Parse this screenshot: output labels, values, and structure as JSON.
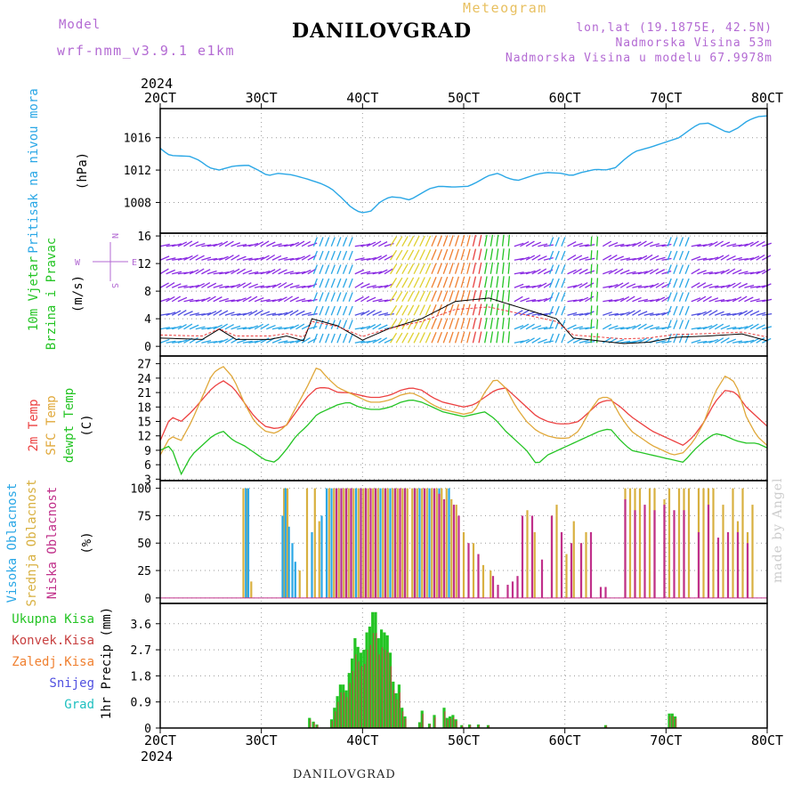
{
  "header": {
    "model_label": "Model",
    "model_name": "wrf-nmm_v3.9.1 e1km",
    "station": "DANILOVGRAD",
    "meteogram_label": "Meteogram",
    "lonlat": "lon,lat (19.1875E, 42.5N)",
    "height": "Nadmorska Visina 53m",
    "model_height": "Nadmorska Visina u modelu 67.9978m"
  },
  "footer": {
    "station": "DANILOVGRAD",
    "credit": "made by Angel"
  },
  "colors": {
    "pressure": "#2aa7e6",
    "temp2m": "#ec4040",
    "sfctemp": "#e0a83a",
    "dewpt": "#24c424",
    "high_cloud": "#2aa7e6",
    "mid_cloud": "#d8b040",
    "low_cloud": "#c0308a",
    "total_precip": "#24c424",
    "conv_precip": "#c84040",
    "snow": "#5050e0",
    "hail": "#20c0c0",
    "wind_label": "#24c424",
    "compass": "#b36ad3"
  },
  "chart_data": [
    {
      "type": "line",
      "panel": "pressure",
      "ylabel_lines": [
        "Pritisak na nivou mora",
        "(hPa)"
      ],
      "ylim": [
        1004.2,
        1019.6
      ],
      "yticks": [
        1008,
        1012,
        1016
      ],
      "grid": true,
      "x": [
        0,
        0.1,
        0.3,
        0.5,
        0.7,
        0.9,
        1.1,
        1.3,
        1.5,
        1.7,
        1.9,
        2.1,
        2.3,
        2.5,
        2.7,
        2.9,
        3.1,
        3.3,
        3.5,
        3.7,
        3.9,
        4.1,
        4.3,
        4.5,
        4.7,
        4.9,
        5.1,
        5.3,
        5.5,
        5.7,
        5.9,
        6.1,
        6.3,
        6.5,
        6.7,
        6.9,
        7.1,
        7.3,
        7.5,
        7.7,
        7.9,
        8.1,
        8.3,
        8.5,
        8.7,
        8.9,
        9.1,
        9.3,
        9.5,
        9.7,
        9.9,
        10.1,
        10.3,
        10.5,
        10.7,
        10.9,
        11.1,
        11.3,
        11.5,
        11.7,
        11.9,
        12.1,
        12.3,
        12.5,
        12.7,
        12.9,
        13.1,
        13.3,
        13.5,
        13.7,
        13.9,
        14.1,
        14.3,
        14.5,
        14.7,
        14.9,
        15.1,
        15.3,
        15.5,
        15.7,
        15.9,
        16.1,
        16.3,
        16.5,
        16.7,
        16.9,
        17.1,
        17.3,
        17.5,
        17.7,
        17.9,
        18.1,
        18.3,
        18.5,
        18.7,
        18.9,
        19.1,
        19.3,
        19.5,
        19.7,
        19.9,
        20.1,
        20.3,
        20.5,
        20.7,
        20.9,
        21.1,
        21.3,
        21.5,
        21.7,
        21.9,
        22.1,
        22.3,
        22.5,
        22.7,
        22.9,
        23.1,
        23.3,
        23.5,
        23.7,
        23.9,
        24.1,
        24.3,
        24.5,
        24.7,
        24.9,
        25.1,
        25.3,
        25.5,
        25.7,
        25.9,
        26.1,
        26.3,
        26.5,
        26.7,
        26.9,
        27.1,
        27.3,
        27.5,
        27.7,
        27.9,
        28.1,
        28.3,
        28.5,
        28.7,
        28.9,
        29.1,
        29.3,
        29.5,
        29.7,
        29.9,
        30.1,
        30.3,
        30.5,
        30.7,
        30.9,
        31.1,
        31.3,
        31.5,
        31.7,
        31.9,
        32.1,
        32.3,
        32.5,
        32.7,
        32.9,
        33.1,
        33.3,
        33.5,
        33.7,
        33.9,
        34.1,
        34.3,
        34.5,
        34.7,
        34.9,
        35.1,
        35.3,
        35.5,
        35.7,
        35.9,
        36.1,
        36.3,
        36.5,
        36.7,
        36.9,
        37.1,
        37.3,
        37.5,
        37.7,
        37.9,
        38.1,
        38.3,
        38.5,
        38.7,
        38.9,
        39.1,
        39.3,
        39.5,
        39.7,
        39.9,
        40.1,
        40.3,
        40.5,
        40.7,
        40.9,
        41.1,
        41.3,
        41.5,
        41.7,
        41.9,
        42.1,
        42.3,
        42.5,
        42.7,
        42.9,
        43.1,
        43.3,
        43.5,
        43.7,
        43.9,
        44.1,
        44.3,
        44.5,
        44.7,
        44.9,
        45.1,
        45.3,
        45.5,
        45.7,
        45.9,
        46.1,
        46.3,
        46.5,
        46.7,
        46.9,
        47.1,
        47.3,
        47.5,
        47.7,
        47.9,
        48.1,
        48.3,
        48.5,
        48.7,
        48.9,
        49.1,
        49.3,
        49.5,
        49.7,
        49.9,
        50.1,
        50.3,
        50.5,
        50.7,
        50.9,
        51.1,
        51.3,
        51.5,
        51.7,
        51.9,
        52.1,
        52.3,
        52.5,
        52.7,
        52.9,
        53.1,
        53.3,
        53.5,
        53.7,
        53.9,
        54.1,
        54.3,
        54.5,
        54.7,
        54.9,
        55.1,
        55.3,
        55.5,
        55.7,
        55.9,
        56.1,
        56.3,
        56.5,
        56.7,
        56.9,
        57.1,
        57.3,
        57.5,
        57.7,
        57.9,
        58.1,
        58.3,
        58.5,
        58.7,
        58.9,
        59.1,
        59.3,
        59.5,
        59.7,
        59.9,
        60.1,
        60.3,
        60.5,
        60.7,
        60.9,
        61.1,
        61.3,
        61.5,
        61.7,
        61.9,
        62.1,
        62.3,
        62.5,
        62.7,
        62.9,
        63.1,
        63.3,
        63.5,
        63.7,
        63.9,
        64.1,
        64.3,
        64.5,
        64.7,
        64.9,
        65.1,
        65.3,
        65.5,
        65.7,
        65.9,
        66.1,
        66.3,
        66.5,
        66.7,
        66.9,
        67.1,
        67.3,
        67.5,
        67.7,
        67.9,
        68.1,
        68.3,
        68.5,
        68.7,
        68.9,
        69.1,
        69.3,
        69.5,
        69.7,
        69.9,
        70.1,
        70.3,
        70.5,
        70.7,
        70.9,
        71.1,
        71.3,
        71.5,
        71.7,
        71.9,
        72.1,
        72.3,
        72.5,
        72.7,
        72.9,
        73.1,
        73.3,
        73.5,
        73.7,
        73.9,
        74.1,
        74.3,
        74.5,
        74.7,
        74.9,
        75.1,
        75.3,
        75.5,
        75.7,
        75.9,
        76.1,
        76.3,
        76.5,
        76.7,
        76.9,
        77.1,
        77.3,
        77.5,
        77.7,
        77.9,
        78.1,
        78.3,
        78.5,
        78.7,
        78.9,
        79.1,
        79.3,
        79.5,
        79.7,
        79.9,
        80.1,
        80.3,
        80.5,
        80.7,
        80.9,
        81.1,
        81.3,
        81.5,
        81.7,
        81.9,
        82.1,
        82.3,
        82.5,
        82.7,
        82.9,
        83.1,
        83.3,
        83.5,
        83.7,
        83.9,
        84.1,
        84.3,
        84.5,
        84.7,
        84.9,
        85.1,
        85.3,
        85.5,
        85.7,
        85.9,
        86.1,
        86.3,
        86.5,
        86.7,
        86.9,
        87.1,
        87.3,
        87.5,
        87.7,
        87.9,
        88.1,
        88.3,
        88.5,
        88.7,
        88.9,
        89.1,
        89.3,
        89.5,
        89.7,
        89.9,
        90.1,
        90.3,
        90.5,
        90.7,
        90.9,
        91.1,
        91.3,
        91.5,
        91.7,
        91.9,
        92.1,
        92.3,
        92.5,
        92.7,
        92.9,
        93.1,
        93.3,
        93.5,
        93.7,
        93.9,
        94.1,
        94.3,
        94.5,
        94.7,
        94.9,
        95.1,
        95.3,
        95.5,
        95.7,
        95.9,
        96.1,
        96.3,
        96.5,
        96.7,
        96.9,
        97.1,
        97.3,
        97.5,
        97.7,
        97.9,
        98.1,
        98.3,
        98.5,
        98.7,
        98.9,
        99.1,
        99.3,
        99.5,
        99.7,
        99.9,
        100.1,
        100.3,
        100.5,
        100.7,
        100.9,
        101.1,
        101.3,
        101.5,
        101.7,
        101.9,
        102.1,
        102.3,
        102.5,
        102.7,
        102.9,
        103.1,
        103.3,
        103.5,
        103.7,
        103.9,
        104.1,
        104.3,
        104.5,
        104.7,
        104.9,
        105.1,
        105.3,
        105.5,
        105.7,
        105.9,
        106.1,
        106.3,
        106.5,
        106.7,
        106.9,
        107.1,
        107.3,
        107.5,
        107.7,
        107.9,
        108.1,
        108.3,
        108.5,
        108.7,
        108.9,
        109.1,
        109.3,
        109.5,
        109.7,
        109.9,
        110.1,
        110.3,
        110.5,
        110.7,
        110.9,
        111.1,
        111.3,
        111.5,
        111.7,
        111.9,
        112.1,
        112.3,
        112.5,
        112.7,
        112.9,
        113.1,
        113.3,
        113.5,
        113.7,
        113.9,
        114.1,
        114.3,
        114.5,
        114.7,
        114.9,
        115.1,
        115.3,
        115.5,
        115.7,
        115.9,
        116.1,
        116.3,
        116.5,
        116.7,
        116.9,
        117.1,
        117.3,
        117.5,
        117.7,
        117.9,
        118.1,
        118.3,
        118.5,
        118.7,
        118.9,
        119.1,
        119.3,
        119.5,
        119.7,
        119.9,
        120.1,
        120.3,
        120.5,
        120.7,
        120.9,
        121.1,
        121.3,
        121.5,
        121.7,
        121.9,
        122.1,
        122.3,
        122.5,
        122.7,
        122.9,
        123.1,
        123.3,
        123.5,
        123.7,
        123.9,
        124.1,
        124.3,
        124.5,
        124.7,
        124.9,
        125.1,
        125.3,
        125.5,
        125.7,
        125.9,
        126.1,
        126.3,
        126.5,
        126.7,
        126.9,
        127.1,
        127.3,
        127.5,
        127.7,
        127.9,
        128.1,
        128.3,
        128.5,
        128.7,
        128.9,
        129.1,
        129.3,
        129.5,
        129.7,
        129.9,
        130.1,
        130.3,
        130.5,
        130.7,
        130.9,
        131.1,
        131.3,
        131.5,
        131.7,
        131.9,
        132.1,
        132.3,
        132.5,
        132.7,
        132.9,
        133.1,
        133.3,
        133.5,
        133.7,
        133.9,
        134.1,
        134.3,
        134.5,
        134.7,
        134.9,
        135.1,
        135.3,
        135.5,
        135.7,
        135.9,
        136.1,
        136.3,
        136.5,
        136.7,
        136.9,
        137.1,
        137.3,
        137.5,
        137.7,
        137.9,
        138.1,
        138.3,
        138.5,
        138.7,
        138.9,
        139.1,
        139.3,
        139.5,
        139.7,
        139.9,
        140.1,
        140.3,
        140.5,
        140.7,
        140.9,
        141.1,
        141.3,
        141.5,
        141.7,
        141.9,
        142.1,
        142.3,
        142.5,
        142.7,
        142.9,
        143.1,
        143.3,
        143.5,
        143.7,
        143.9,
        144
      ],
      "series": [
        {
          "values": "computed"
        }
      ]
    },
    {
      "type": "line",
      "panel": "wind",
      "ylabel_lines": [
        "10m Vjetar",
        "Brzina i Pravac",
        "(m/s)"
      ],
      "compass": {
        "n": "N",
        "s": "S",
        "e": "E",
        "w": "W"
      },
      "ylim": [
        -1.4,
        16.4
      ],
      "yticks": [
        0,
        4,
        8,
        12,
        16
      ],
      "grid": true
    },
    {
      "type": "line",
      "panel": "temperature",
      "ylabel_lines": [
        "2m Temp",
        "SFC Temp",
        "dewpt Temp",
        "(C)"
      ],
      "ylim": [
        2.7,
        28.6
      ],
      "yticks": [
        3,
        6,
        9,
        12,
        15,
        18,
        21,
        24,
        27
      ],
      "grid": true
    },
    {
      "type": "bar",
      "panel": "cloud",
      "ylabel_lines": [
        "Visoka Oblacnost",
        "Srednja Oblacnost",
        "Niska Oblacnost",
        "(%)"
      ],
      "ylim": [
        -5,
        107
      ],
      "yticks": [
        0,
        25,
        50,
        75,
        100
      ],
      "grid": true
    },
    {
      "type": "bar",
      "panel": "precip",
      "legend": [
        "Ukupna Kisa",
        "Konvek.Kisa",
        "Zaledj.Kisa",
        "Snijeg",
        "Grad"
      ],
      "ylabel": "1hr Precip (mm)",
      "ylim": [
        0,
        4.3
      ],
      "yticks": [
        0,
        0.9,
        1.8,
        2.7,
        3.6
      ],
      "grid": true
    }
  ],
  "x_axis": {
    "year": "2024",
    "ticks": [
      "20CT",
      "30CT",
      "40CT",
      "50CT",
      "60CT",
      "70CT",
      "80CT"
    ],
    "range_hours": [
      0,
      144
    ]
  }
}
